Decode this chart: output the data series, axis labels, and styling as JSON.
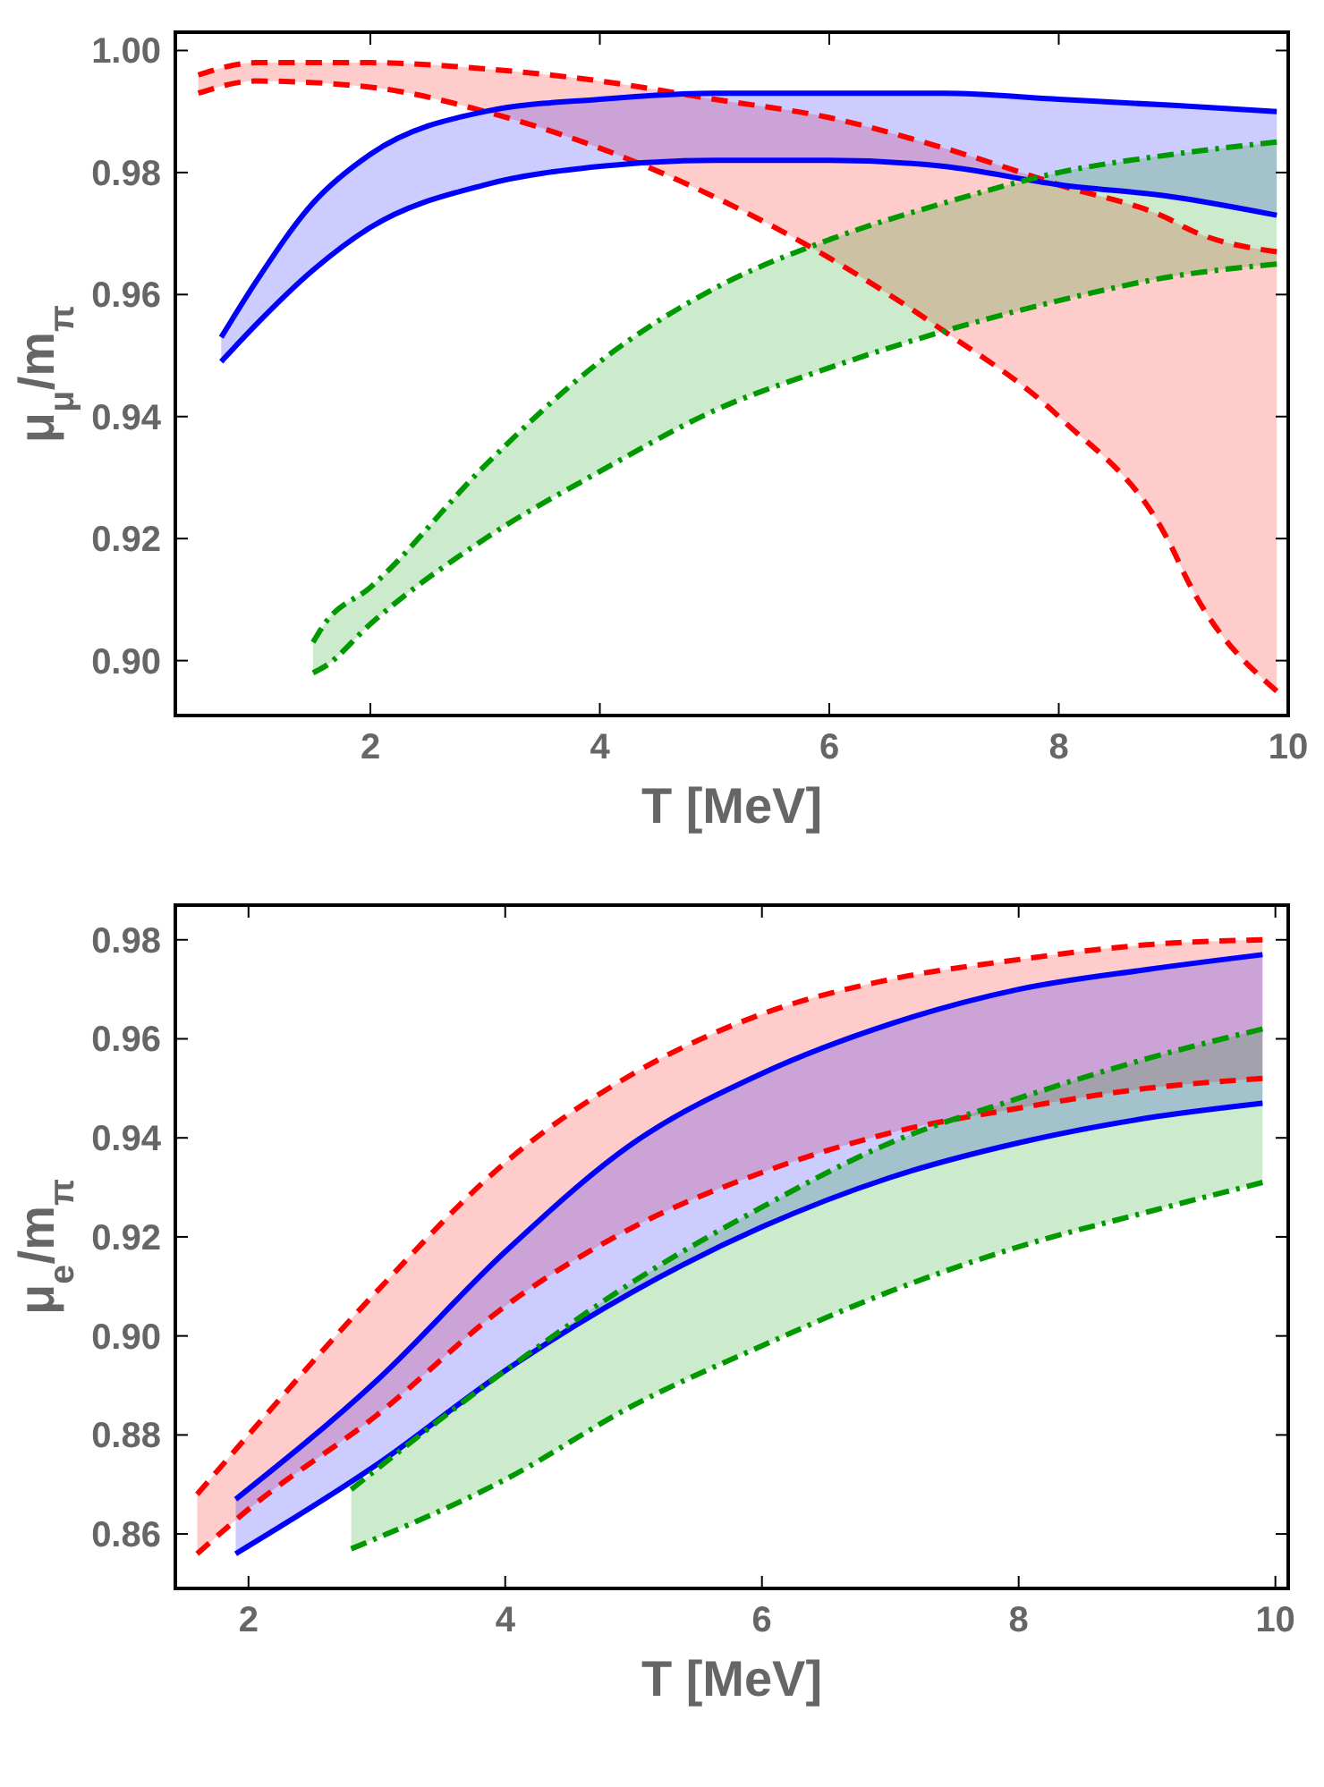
{
  "chart_data": [
    {
      "type": "area",
      "xlabel": "T [MeV]",
      "ylabel": "μ$_{μ}$/m$_{π}$",
      "xlim": [
        0.3,
        10
      ],
      "ylim": [
        0.891,
        1.003
      ],
      "xticks": [
        2,
        4,
        6,
        8,
        10
      ],
      "yticks": [
        {
          "value": 0.9,
          "label": "0.90"
        },
        {
          "value": 0.92,
          "label": "0.92"
        },
        {
          "value": 0.94,
          "label": "0.94"
        },
        {
          "value": 0.96,
          "label": "0.96"
        },
        {
          "value": 0.98,
          "label": "0.98"
        },
        {
          "value": 1.0,
          "label": "1.00"
        }
      ],
      "grid": false,
      "series": [
        {
          "type": "line",
          "color": "#ff0000",
          "line_style": "dashed",
          "x": [
            0.5,
            1,
            2,
            3,
            4,
            5,
            6,
            7,
            8,
            9,
            9.1,
            9.9
          ],
          "values": [
            0.996,
            0.998,
            0.998,
            0.997,
            0.995,
            0.992,
            0.989,
            0.984,
            0.978,
            0.972,
            0.971,
            0.967
          ],
          "lower": [
            0.993,
            0.995,
            0.994,
            0.99,
            0.984,
            0.976,
            0.966,
            0.954,
            0.94,
            0.918,
            0.914,
            0.895
          ],
          "upper": [
            0.996,
            0.998,
            0.998,
            0.997,
            0.995,
            0.992,
            0.989,
            0.984,
            0.978,
            0.972,
            0.971,
            0.967
          ]
        },
        {
          "type": "line",
          "color": "#ff0000",
          "line_style": "dashed",
          "x": [
            0.5,
            1,
            2,
            3,
            4,
            5,
            6,
            7,
            8,
            9,
            9.1,
            9.9
          ],
          "values": [
            0.993,
            0.995,
            0.994,
            0.99,
            0.984,
            0.976,
            0.966,
            0.954,
            0.94,
            0.918,
            0.914,
            0.895
          ]
        },
        {
          "type": "line",
          "color": "#0000ff",
          "line_style": "solid",
          "x": [
            0.7,
            1,
            1.5,
            2,
            3,
            4,
            5,
            6,
            7,
            8,
            9,
            9.9
          ],
          "values": [
            0.953,
            0.962,
            0.975,
            0.983,
            0.99,
            0.992,
            0.993,
            0.993,
            0.993,
            0.992,
            0.991,
            0.99
          ],
          "lower": [
            0.949,
            0.955,
            0.964,
            0.971,
            0.978,
            0.981,
            0.982,
            0.982,
            0.981,
            0.978,
            0.976,
            0.973
          ],
          "upper": [
            0.953,
            0.962,
            0.975,
            0.983,
            0.99,
            0.992,
            0.993,
            0.993,
            0.993,
            0.992,
            0.991,
            0.99
          ]
        },
        {
          "type": "line",
          "color": "#0000ff",
          "line_style": "solid",
          "x": [
            0.7,
            1,
            1.5,
            2,
            3,
            4,
            5,
            6,
            7,
            8,
            9,
            9.9
          ],
          "values": [
            0.949,
            0.955,
            0.964,
            0.971,
            0.978,
            0.981,
            0.982,
            0.982,
            0.981,
            0.978,
            0.976,
            0.973
          ]
        },
        {
          "type": "line",
          "color": "#009900",
          "line_style": "dashdot",
          "x": [
            1.5,
            1.6,
            2,
            3,
            4,
            5,
            6,
            7,
            8,
            9,
            9.9
          ],
          "values": [
            0.903,
            0.906,
            0.912,
            0.932,
            0.949,
            0.961,
            0.969,
            0.975,
            0.98,
            0.983,
            0.985
          ],
          "lower": [
            0.898,
            0.899,
            0.906,
            0.92,
            0.931,
            0.941,
            0.948,
            0.954,
            0.959,
            0.963,
            0.965
          ],
          "upper": [
            0.903,
            0.906,
            0.912,
            0.932,
            0.949,
            0.961,
            0.969,
            0.975,
            0.98,
            0.983,
            0.985
          ]
        },
        {
          "type": "line",
          "color": "#009900",
          "line_style": "dashdot",
          "x": [
            1.5,
            1.6,
            2,
            3,
            4,
            5,
            6,
            7,
            8,
            9,
            9.9
          ],
          "values": [
            0.898,
            0.899,
            0.906,
            0.92,
            0.931,
            0.941,
            0.948,
            0.954,
            0.959,
            0.963,
            0.965
          ]
        }
      ]
    },
    {
      "type": "area",
      "xlabel": "T [MeV]",
      "ylabel": "μ$_{e}$/m$_{π}$",
      "xlim": [
        1.43,
        10.1
      ],
      "ylim": [
        0.849,
        0.987
      ],
      "xticks": [
        2,
        4,
        6,
        8,
        10
      ],
      "yticks": [
        {
          "value": 0.86,
          "label": "0.86"
        },
        {
          "value": 0.88,
          "label": "0.88"
        },
        {
          "value": 0.9,
          "label": "0.90"
        },
        {
          "value": 0.92,
          "label": "0.92"
        },
        {
          "value": 0.94,
          "label": "0.94"
        },
        {
          "value": 0.96,
          "label": "0.96"
        },
        {
          "value": 0.98,
          "label": "0.98"
        }
      ],
      "grid": false,
      "series": [
        {
          "type": "line",
          "color": "#ff0000",
          "line_style": "dashed",
          "x": [
            1.6,
            2,
            3,
            4,
            5,
            6,
            7,
            8,
            9,
            9.9
          ],
          "values": [
            0.868,
            0.88,
            0.909,
            0.935,
            0.953,
            0.965,
            0.972,
            0.976,
            0.979,
            0.98
          ],
          "lower": [
            0.856,
            0.865,
            0.884,
            0.906,
            0.922,
            0.933,
            0.941,
            0.946,
            0.95,
            0.952
          ],
          "upper": [
            0.868,
            0.88,
            0.909,
            0.935,
            0.953,
            0.965,
            0.972,
            0.976,
            0.979,
            0.98
          ]
        },
        {
          "type": "line",
          "color": "#ff0000",
          "line_style": "dashed",
          "x": [
            1.6,
            2,
            3,
            4,
            5,
            6,
            7,
            8,
            9,
            9.9
          ],
          "values": [
            0.856,
            0.865,
            0.884,
            0.906,
            0.922,
            0.933,
            0.941,
            0.946,
            0.95,
            0.952
          ]
        },
        {
          "type": "line",
          "color": "#0000ff",
          "line_style": "solid",
          "x": [
            1.9,
            3,
            4,
            5,
            6,
            7,
            8,
            9,
            9.9
          ],
          "values": [
            0.867,
            0.891,
            0.917,
            0.939,
            0.953,
            0.963,
            0.97,
            0.974,
            0.977
          ],
          "lower": [
            0.856,
            0.874,
            0.893,
            0.909,
            0.922,
            0.932,
            0.939,
            0.944,
            0.947
          ],
          "upper": [
            0.867,
            0.891,
            0.917,
            0.939,
            0.953,
            0.963,
            0.97,
            0.974,
            0.977
          ]
        },
        {
          "type": "line",
          "color": "#0000ff",
          "line_style": "solid",
          "x": [
            1.9,
            3,
            4,
            5,
            6,
            7,
            8,
            9,
            9.9
          ],
          "values": [
            0.856,
            0.874,
            0.893,
            0.909,
            0.922,
            0.932,
            0.939,
            0.944,
            0.947
          ]
        },
        {
          "type": "line",
          "color": "#009900",
          "line_style": "dashdot",
          "x": [
            2.8,
            4,
            5,
            6,
            7,
            8,
            9,
            9.9
          ],
          "values": [
            0.869,
            0.893,
            0.911,
            0.926,
            0.939,
            0.948,
            0.956,
            0.962
          ],
          "lower": [
            0.857,
            0.871,
            0.886,
            0.898,
            0.909,
            0.918,
            0.925,
            0.931
          ],
          "upper": [
            0.869,
            0.893,
            0.911,
            0.926,
            0.939,
            0.948,
            0.956,
            0.962
          ]
        },
        {
          "type": "line",
          "color": "#009900",
          "line_style": "dashdot",
          "x": [
            2.8,
            4,
            5,
            6,
            7,
            8,
            9,
            9.9
          ],
          "values": [
            0.857,
            0.871,
            0.886,
            0.898,
            0.909,
            0.918,
            0.925,
            0.931
          ]
        }
      ]
    }
  ]
}
